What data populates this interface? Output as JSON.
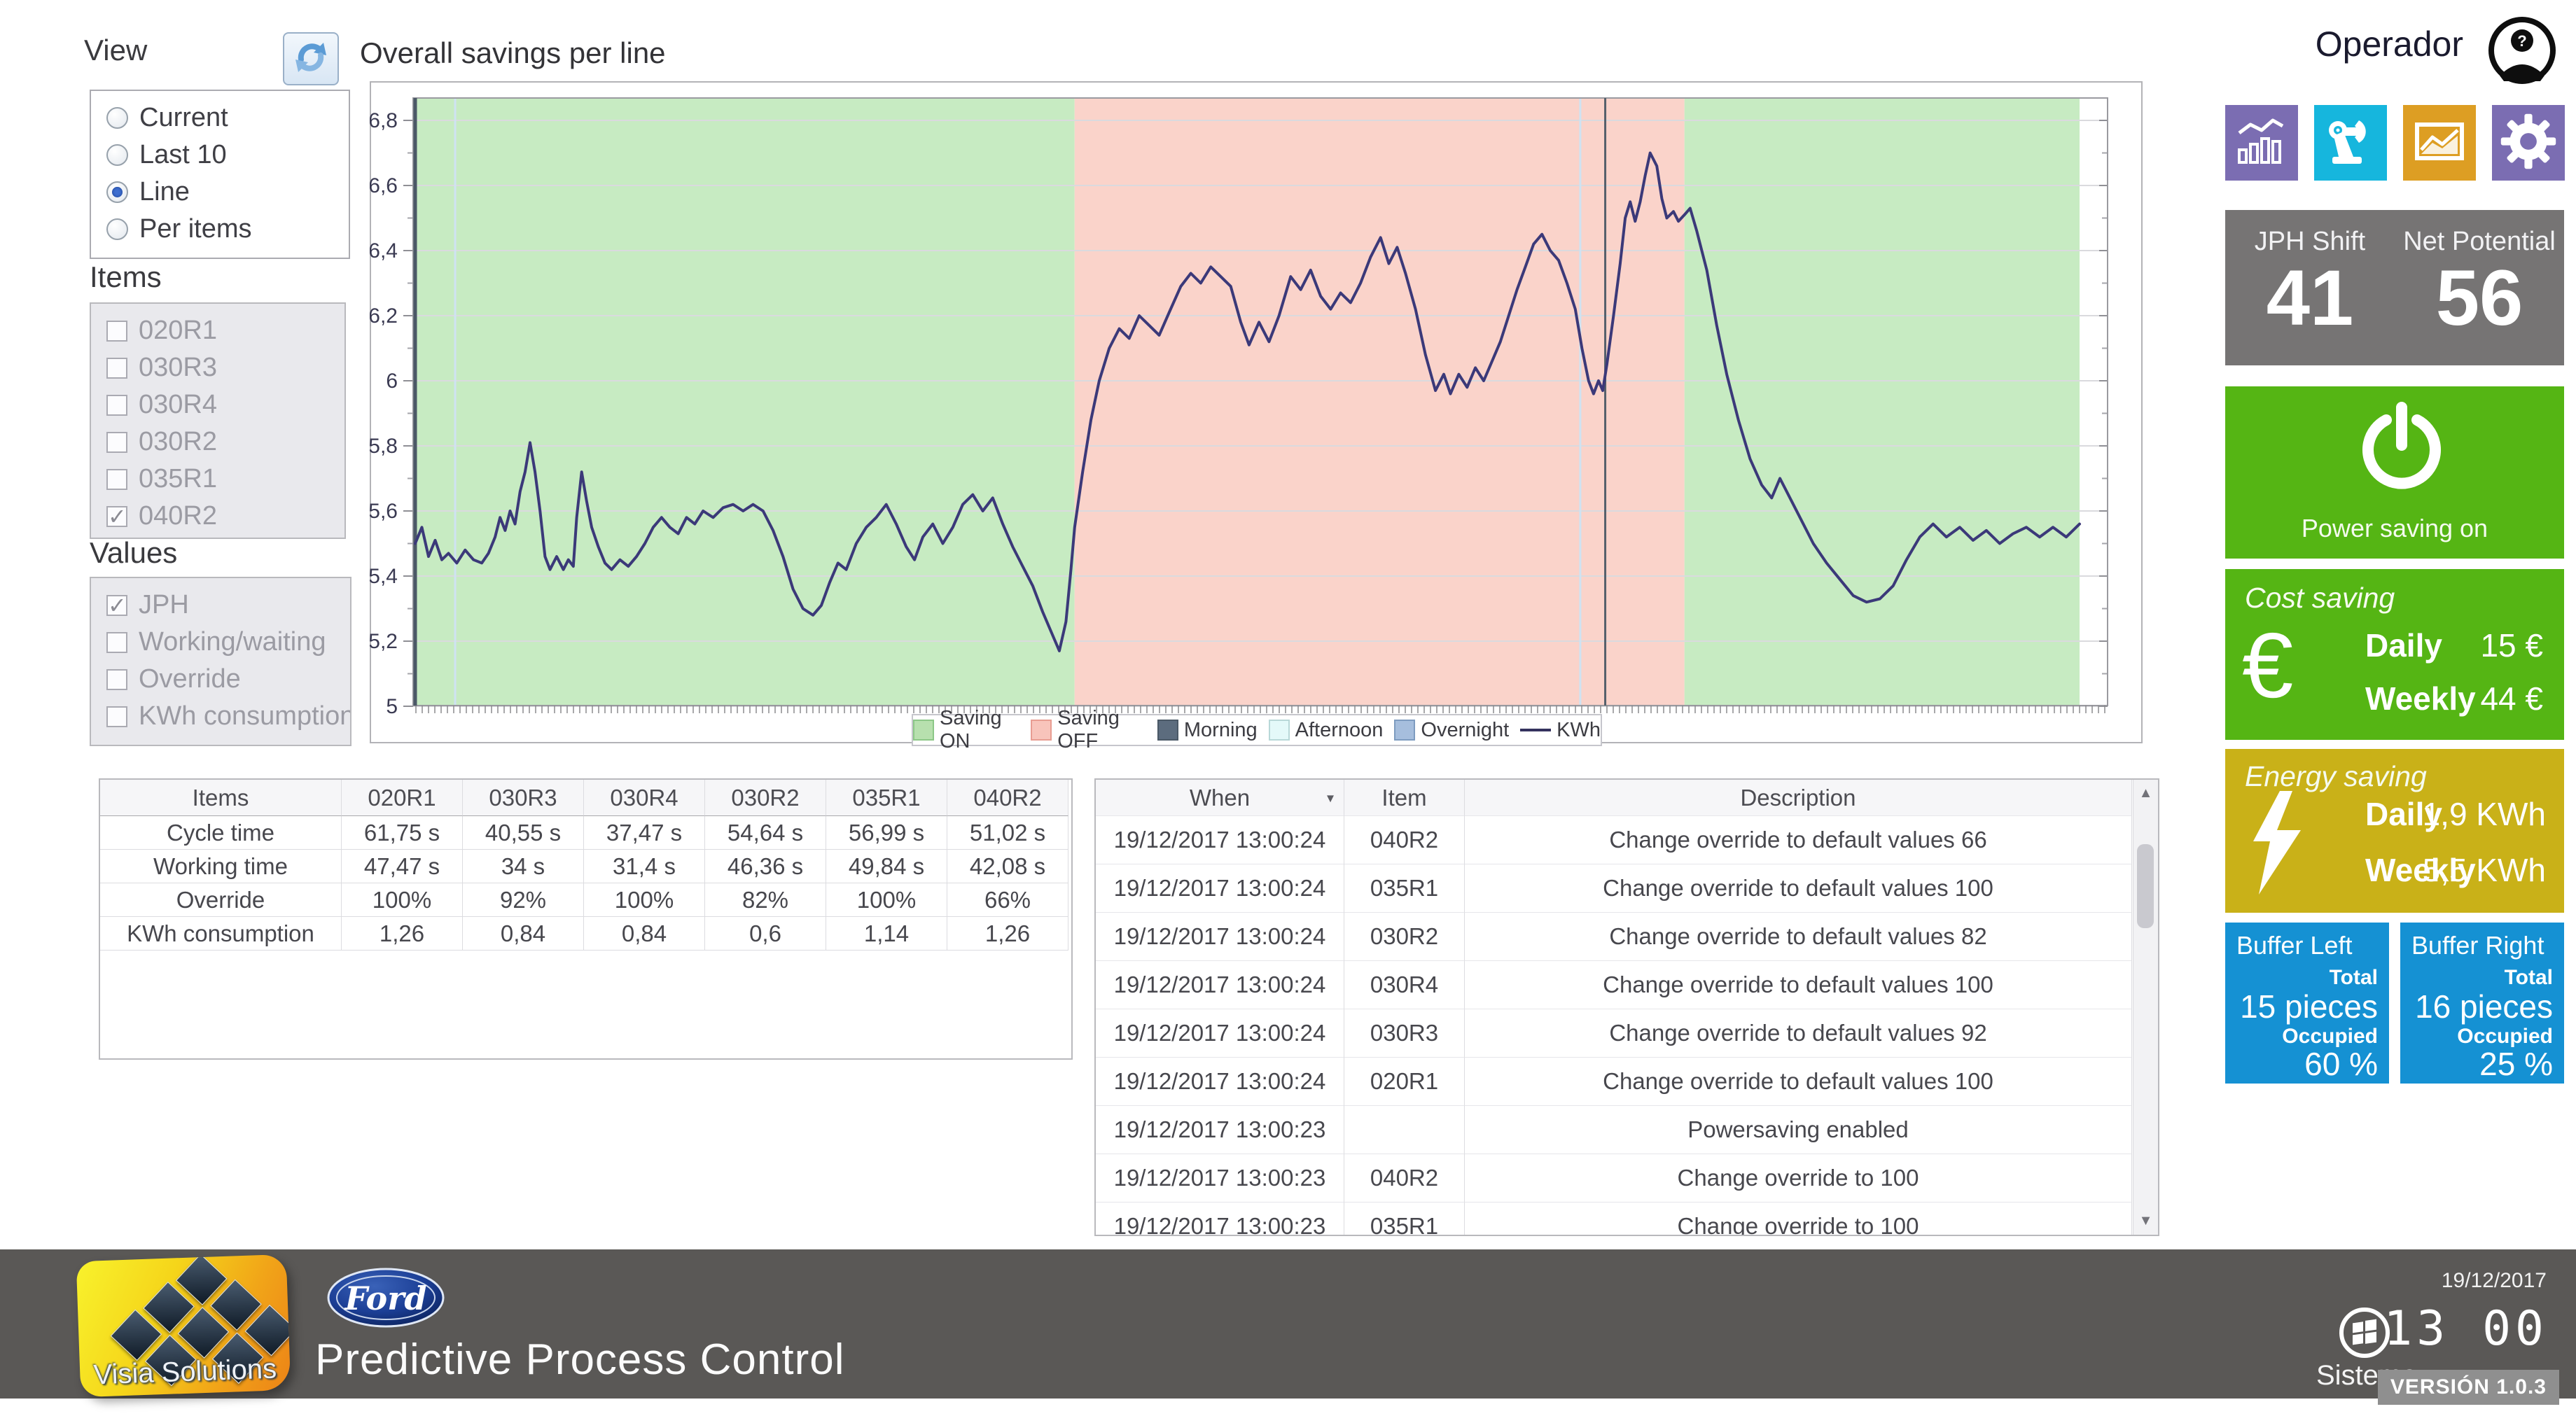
{
  "view_panel": {
    "title": "View",
    "options": [
      {
        "label": "Current",
        "selected": false
      },
      {
        "label": "Last 10",
        "selected": false
      },
      {
        "label": "Line",
        "selected": true
      },
      {
        "label": "Per items",
        "selected": false
      }
    ]
  },
  "items_panel": {
    "title": "Items",
    "options": [
      {
        "label": "020R1",
        "checked": false
      },
      {
        "label": "030R3",
        "checked": false
      },
      {
        "label": "030R4",
        "checked": false
      },
      {
        "label": "030R2",
        "checked": false
      },
      {
        "label": "035R1",
        "checked": false
      },
      {
        "label": "040R2",
        "checked": true
      }
    ]
  },
  "values_panel": {
    "title": "Values",
    "options": [
      {
        "label": "JPH",
        "checked": true
      },
      {
        "label": "Working/waiting",
        "checked": false
      },
      {
        "label": "Override",
        "checked": false
      },
      {
        "label": "KWh consumption",
        "checked": false
      }
    ]
  },
  "chart": {
    "title": "Overall savings per line",
    "legend": [
      {
        "label": "Saving ON",
        "swatch": "#b7e0ae",
        "border": "#8cc787"
      },
      {
        "label": "Saving OFF",
        "swatch": "#f8c4bb",
        "border": "#e89d92"
      },
      {
        "label": "Morning",
        "swatch": "#5c6c7e",
        "border": "#4a5866"
      },
      {
        "label": "Afternoon",
        "swatch": "#e4f9f9",
        "border": "#b8d8d8"
      },
      {
        "label": "Overnight",
        "swatch": "#a6bedd",
        "border": "#7e9cc0"
      },
      {
        "label": "KWh",
        "swatch": "line"
      }
    ]
  },
  "chart_data": {
    "type": "line",
    "title": "Overall savings per line",
    "ylim": [
      5.0,
      6.8
    ],
    "ytick_labels": [
      "6,8",
      "6,6",
      "6,4",
      "6,2",
      "6",
      "5,8",
      "5,6",
      "5,4",
      "5,2",
      "5"
    ],
    "grid": true,
    "legend_position": "bottom-center",
    "regions": [
      {
        "name": "Saving ON",
        "from": 0.0,
        "to": 0.3962,
        "color": "#c7ebc2"
      },
      {
        "name": "Saving OFF",
        "from": 0.3962,
        "to": 0.7626,
        "color": "#fad3ca"
      },
      {
        "name": "Saving ON",
        "from": 0.7626,
        "to": 1.0,
        "color": "#c7ebc2"
      }
    ],
    "cursor_frac": 0.715,
    "minor_vlines": [
      0.024,
      0.7
    ],
    "series": [
      {
        "name": "KWh",
        "color": "#3b3979",
        "points": [
          [
            0.0,
            5.5
          ],
          [
            0.004,
            5.55
          ],
          [
            0.008,
            5.46
          ],
          [
            0.012,
            5.51
          ],
          [
            0.016,
            5.45
          ],
          [
            0.02,
            5.47
          ],
          [
            0.025,
            5.44
          ],
          [
            0.03,
            5.48
          ],
          [
            0.035,
            5.45
          ],
          [
            0.04,
            5.44
          ],
          [
            0.044,
            5.47
          ],
          [
            0.048,
            5.52
          ],
          [
            0.051,
            5.58
          ],
          [
            0.054,
            5.54
          ],
          [
            0.057,
            5.6
          ],
          [
            0.06,
            5.56
          ],
          [
            0.063,
            5.66
          ],
          [
            0.066,
            5.72
          ],
          [
            0.069,
            5.81
          ],
          [
            0.072,
            5.72
          ],
          [
            0.075,
            5.6
          ],
          [
            0.078,
            5.46
          ],
          [
            0.081,
            5.42
          ],
          [
            0.085,
            5.46
          ],
          [
            0.089,
            5.42
          ],
          [
            0.092,
            5.45
          ],
          [
            0.095,
            5.43
          ],
          [
            0.097,
            5.58
          ],
          [
            0.1,
            5.72
          ],
          [
            0.103,
            5.63
          ],
          [
            0.106,
            5.55
          ],
          [
            0.11,
            5.49
          ],
          [
            0.114,
            5.44
          ],
          [
            0.118,
            5.42
          ],
          [
            0.123,
            5.45
          ],
          [
            0.128,
            5.43
          ],
          [
            0.133,
            5.46
          ],
          [
            0.138,
            5.5
          ],
          [
            0.143,
            5.55
          ],
          [
            0.148,
            5.58
          ],
          [
            0.153,
            5.55
          ],
          [
            0.158,
            5.53
          ],
          [
            0.163,
            5.58
          ],
          [
            0.168,
            5.56
          ],
          [
            0.173,
            5.6
          ],
          [
            0.179,
            5.58
          ],
          [
            0.185,
            5.61
          ],
          [
            0.191,
            5.62
          ],
          [
            0.197,
            5.6
          ],
          [
            0.203,
            5.62
          ],
          [
            0.209,
            5.6
          ],
          [
            0.215,
            5.54
          ],
          [
            0.221,
            5.46
          ],
          [
            0.227,
            5.36
          ],
          [
            0.233,
            5.3
          ],
          [
            0.239,
            5.28
          ],
          [
            0.244,
            5.31
          ],
          [
            0.249,
            5.38
          ],
          [
            0.254,
            5.44
          ],
          [
            0.259,
            5.42
          ],
          [
            0.265,
            5.5
          ],
          [
            0.271,
            5.55
          ],
          [
            0.277,
            5.58
          ],
          [
            0.283,
            5.62
          ],
          [
            0.289,
            5.56
          ],
          [
            0.295,
            5.49
          ],
          [
            0.3,
            5.45
          ],
          [
            0.305,
            5.52
          ],
          [
            0.311,
            5.56
          ],
          [
            0.317,
            5.5
          ],
          [
            0.323,
            5.55
          ],
          [
            0.329,
            5.62
          ],
          [
            0.335,
            5.65
          ],
          [
            0.341,
            5.6
          ],
          [
            0.347,
            5.64
          ],
          [
            0.353,
            5.56
          ],
          [
            0.359,
            5.49
          ],
          [
            0.365,
            5.43
          ],
          [
            0.371,
            5.37
          ],
          [
            0.377,
            5.29
          ],
          [
            0.382,
            5.23
          ],
          [
            0.387,
            5.17
          ],
          [
            0.391,
            5.26
          ],
          [
            0.394,
            5.42
          ],
          [
            0.3962,
            5.55
          ],
          [
            0.401,
            5.72
          ],
          [
            0.406,
            5.88
          ],
          [
            0.411,
            6.0
          ],
          [
            0.417,
            6.1
          ],
          [
            0.423,
            6.16
          ],
          [
            0.429,
            6.13
          ],
          [
            0.435,
            6.2
          ],
          [
            0.441,
            6.17
          ],
          [
            0.447,
            6.14
          ],
          [
            0.453,
            6.21
          ],
          [
            0.46,
            6.29
          ],
          [
            0.466,
            6.33
          ],
          [
            0.472,
            6.3
          ],
          [
            0.478,
            6.35
          ],
          [
            0.484,
            6.32
          ],
          [
            0.49,
            6.29
          ],
          [
            0.496,
            6.18
          ],
          [
            0.501,
            6.11
          ],
          [
            0.507,
            6.18
          ],
          [
            0.513,
            6.12
          ],
          [
            0.519,
            6.2
          ],
          [
            0.526,
            6.32
          ],
          [
            0.532,
            6.28
          ],
          [
            0.538,
            6.34
          ],
          [
            0.544,
            6.26
          ],
          [
            0.55,
            6.22
          ],
          [
            0.556,
            6.27
          ],
          [
            0.562,
            6.24
          ],
          [
            0.568,
            6.3
          ],
          [
            0.574,
            6.38
          ],
          [
            0.58,
            6.44
          ],
          [
            0.585,
            6.36
          ],
          [
            0.59,
            6.41
          ],
          [
            0.595,
            6.33
          ],
          [
            0.601,
            6.22
          ],
          [
            0.607,
            6.08
          ],
          [
            0.613,
            5.97
          ],
          [
            0.618,
            6.02
          ],
          [
            0.622,
            5.96
          ],
          [
            0.627,
            6.02
          ],
          [
            0.632,
            5.98
          ],
          [
            0.637,
            6.04
          ],
          [
            0.642,
            6.0
          ],
          [
            0.647,
            6.06
          ],
          [
            0.652,
            6.12
          ],
          [
            0.657,
            6.2
          ],
          [
            0.662,
            6.28
          ],
          [
            0.667,
            6.35
          ],
          [
            0.672,
            6.42
          ],
          [
            0.677,
            6.45
          ],
          [
            0.682,
            6.4
          ],
          [
            0.687,
            6.37
          ],
          [
            0.692,
            6.3
          ],
          [
            0.697,
            6.22
          ],
          [
            0.701,
            6.1
          ],
          [
            0.705,
            6.0
          ],
          [
            0.708,
            5.96
          ],
          [
            0.711,
            6.0
          ],
          [
            0.7135,
            5.97
          ],
          [
            0.716,
            6.05
          ],
          [
            0.72,
            6.2
          ],
          [
            0.724,
            6.36
          ],
          [
            0.727,
            6.5
          ],
          [
            0.73,
            6.55
          ],
          [
            0.733,
            6.49
          ],
          [
            0.736,
            6.55
          ],
          [
            0.739,
            6.63
          ],
          [
            0.742,
            6.7
          ],
          [
            0.746,
            6.66
          ],
          [
            0.749,
            6.56
          ],
          [
            0.752,
            6.5
          ],
          [
            0.756,
            6.52
          ],
          [
            0.759,
            6.49
          ],
          [
            0.7626,
            6.51
          ],
          [
            0.766,
            6.53
          ],
          [
            0.77,
            6.46
          ],
          [
            0.776,
            6.34
          ],
          [
            0.782,
            6.17
          ],
          [
            0.788,
            6.02
          ],
          [
            0.795,
            5.88
          ],
          [
            0.802,
            5.76
          ],
          [
            0.809,
            5.68
          ],
          [
            0.815,
            5.64
          ],
          [
            0.82,
            5.7
          ],
          [
            0.825,
            5.65
          ],
          [
            0.832,
            5.58
          ],
          [
            0.84,
            5.5
          ],
          [
            0.848,
            5.44
          ],
          [
            0.856,
            5.39
          ],
          [
            0.864,
            5.34
          ],
          [
            0.872,
            5.32
          ],
          [
            0.88,
            5.33
          ],
          [
            0.888,
            5.37
          ],
          [
            0.896,
            5.45
          ],
          [
            0.904,
            5.52
          ],
          [
            0.912,
            5.56
          ],
          [
            0.92,
            5.52
          ],
          [
            0.928,
            5.55
          ],
          [
            0.936,
            5.51
          ],
          [
            0.944,
            5.54
          ],
          [
            0.952,
            5.5
          ],
          [
            0.96,
            5.53
          ],
          [
            0.968,
            5.55
          ],
          [
            0.976,
            5.52
          ],
          [
            0.984,
            5.55
          ],
          [
            0.992,
            5.52
          ],
          [
            1.0,
            5.56
          ]
        ]
      }
    ]
  },
  "metrics_table": {
    "headers": [
      "Items",
      "020R1",
      "030R3",
      "030R4",
      "030R2",
      "035R1",
      "040R2"
    ],
    "rows": [
      {
        "label": "Cycle time",
        "values": [
          "61,75 s",
          "40,55 s",
          "37,47 s",
          "54,64 s",
          "56,99 s",
          "51,02 s"
        ]
      },
      {
        "label": "Working time",
        "values": [
          "47,47 s",
          "34 s",
          "31,4 s",
          "46,36 s",
          "49,84 s",
          "42,08 s"
        ]
      },
      {
        "label": "Override",
        "values": [
          "100%",
          "92%",
          "100%",
          "82%",
          "100%",
          "66%"
        ]
      },
      {
        "label": "KWh consumption",
        "values": [
          "1,26",
          "0,84",
          "0,84",
          "0,6",
          "1,14",
          "1,26"
        ]
      }
    ]
  },
  "events_table": {
    "headers": [
      "When",
      "Item",
      "Description"
    ],
    "rows": [
      {
        "when": "19/12/2017 13:00:24",
        "item": "040R2",
        "description": "Change override to default values 66"
      },
      {
        "when": "19/12/2017 13:00:24",
        "item": "035R1",
        "description": "Change override to default values 100"
      },
      {
        "when": "19/12/2017 13:00:24",
        "item": "030R2",
        "description": "Change override to default values 82"
      },
      {
        "when": "19/12/2017 13:00:24",
        "item": "030R4",
        "description": "Change override to default values 100"
      },
      {
        "when": "19/12/2017 13:00:24",
        "item": "030R3",
        "description": "Change override to default values 92"
      },
      {
        "when": "19/12/2017 13:00:24",
        "item": "020R1",
        "description": "Change override to default values 100"
      },
      {
        "when": "19/12/2017 13:00:23",
        "item": "",
        "description": "Powersaving enabled"
      },
      {
        "when": "19/12/2017 13:00:23",
        "item": "040R2",
        "description": "Change override to 100"
      },
      {
        "when": "19/12/2017 13:00:23",
        "item": "035R1",
        "description": "Change override to 100"
      }
    ]
  },
  "sidebar": {
    "user": "Operador",
    "tiles": [
      {
        "name": "statistics",
        "color": "#7b6db2"
      },
      {
        "name": "robot",
        "color": "#16b6dd"
      },
      {
        "name": "trends",
        "color": "#dd9e23"
      },
      {
        "name": "settings",
        "color": "#7b6db2"
      }
    ],
    "jph_shift": {
      "label": "JPH Shift",
      "value": "41"
    },
    "net_potential": {
      "label": "Net Potential",
      "value": "56"
    },
    "power": {
      "label": "Power saving on",
      "color": "#55b514"
    },
    "cost_saving": {
      "title": "Cost saving",
      "currency": "€",
      "daily_label": "Daily",
      "daily_value": "15 €",
      "weekly_label": "Weekly",
      "weekly_value": "44 €"
    },
    "energy_saving": {
      "title": "Energy saving",
      "daily_label": "Daily",
      "daily_value": "1,9 KWh",
      "weekly_label": "Weekly",
      "weekly_value": "5,5 KWh",
      "color": "#c9b118"
    },
    "buffers": [
      {
        "title": "Buffer Left",
        "total_label": "Total",
        "total_value": "15 pieces",
        "occupied_label": "Occupied",
        "occupied_value": "60 %"
      },
      {
        "title": "Buffer Right",
        "total_label": "Total",
        "total_value": "16 pieces",
        "occupied_label": "Occupied",
        "occupied_value": "25 %"
      }
    ],
    "buffer_color": "#1591d3",
    "metric_box_color": "#767474"
  },
  "footer": {
    "brand": "Visia Solutions",
    "ford": "Ford",
    "app_title": "Predictive Process Control",
    "system_label": "Sistema",
    "date": "19/12/2017",
    "time": "13 00",
    "version": "VERSIÓN 1.0.3"
  }
}
